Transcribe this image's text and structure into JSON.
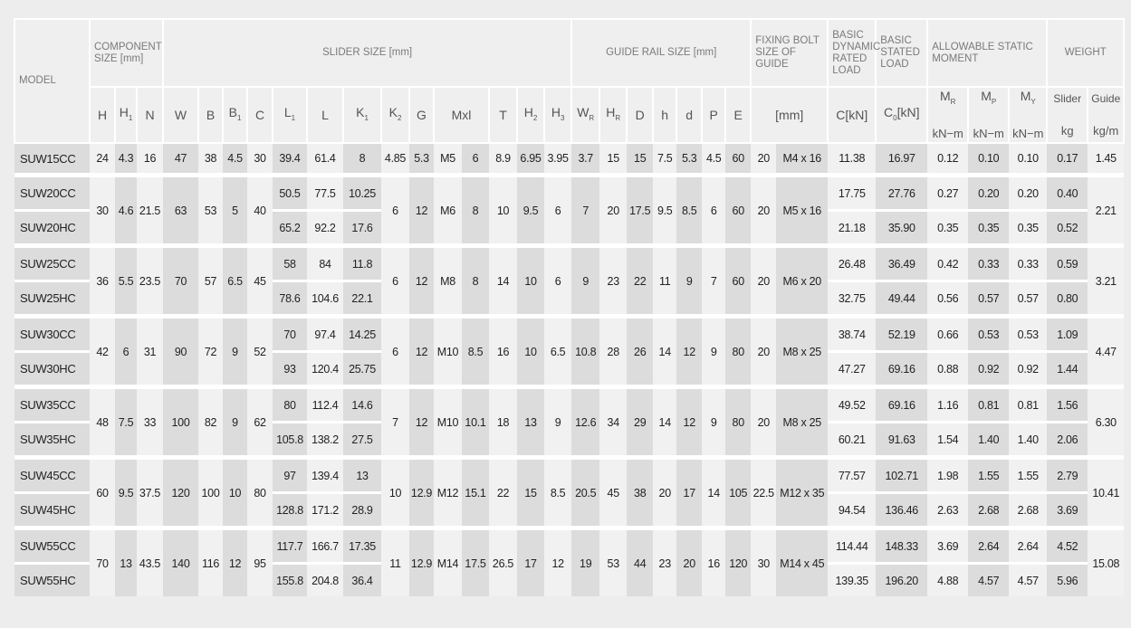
{
  "header": {
    "model": "MODEL",
    "component": "COMPONENT SIZE [mm]",
    "slider": "SLIDER SIZE [mm]",
    "guide_rail": "GUIDE RAIL SIZE [mm]",
    "fixing_bolt": "FIXING BOLT SIZE OF GUIDE",
    "dynamic_load": "BASIC DYNAMIC RATED LOAD",
    "static_load": "BASIC STATED LOAD",
    "moment": "ALLOWABLE STATIC MOMENT",
    "weight": "WEIGHT",
    "sub_labels": [
      {
        "base": "H",
        "sub": ""
      },
      {
        "base": "H",
        "sub": "1"
      },
      {
        "base": "N",
        "sub": ""
      },
      {
        "base": "W",
        "sub": ""
      },
      {
        "base": "B",
        "sub": ""
      },
      {
        "base": "B",
        "sub": "1"
      },
      {
        "base": "C",
        "sub": ""
      },
      {
        "base": "L",
        "sub": "1"
      },
      {
        "base": "L",
        "sub": ""
      },
      {
        "base": "K",
        "sub": "1"
      },
      {
        "base": "K",
        "sub": "2"
      },
      {
        "base": "G",
        "sub": ""
      },
      {
        "base": "Mxl",
        "sub": "",
        "span": 2
      },
      {
        "base": "T",
        "sub": ""
      },
      {
        "base": "H",
        "sub": "2"
      },
      {
        "base": "H",
        "sub": "3"
      },
      {
        "base": "W",
        "sub": "R"
      },
      {
        "base": "H",
        "sub": "R"
      },
      {
        "base": "D",
        "sub": ""
      },
      {
        "base": "h",
        "sub": ""
      },
      {
        "base": "d",
        "sub": ""
      },
      {
        "base": "P",
        "sub": ""
      },
      {
        "base": "E",
        "sub": ""
      },
      {
        "base": "[mm]",
        "sub": "",
        "span": 2
      },
      {
        "base": "C[kN]",
        "sub": ""
      },
      {
        "base": "C",
        "sub": "0",
        "tail": "[kN]"
      }
    ],
    "right_labels": [
      {
        "base": "M",
        "sub": "R",
        "unit": "kN−m"
      },
      {
        "base": "M",
        "sub": "P",
        "unit": "kN−m"
      },
      {
        "base": "M",
        "sub": "Y",
        "unit": "kN−m"
      },
      {
        "base": "Slider",
        "sub": "",
        "unit": "kg"
      },
      {
        "base": "Guide",
        "sub": "",
        "unit": "kg/m"
      }
    ]
  },
  "groups": [
    {
      "shared": {
        "H": "24",
        "H1": "4.3",
        "N": "16",
        "W": "47",
        "B": "38",
        "B1": "4.5",
        "C": "30",
        "K2": "4.85",
        "G": "5.3",
        "M": "M5",
        "l": "6",
        "T": "8.9",
        "H2": "6.95",
        "H3": "3.95",
        "WR": "3.7",
        "HR": "15",
        "D": "15",
        "h": "7.5",
        "d": "5.3",
        "P": "4.5",
        "E": "60",
        "b1": "20",
        "b2": "M4 x 16"
      },
      "guide": "1.45",
      "variants": [
        {
          "model": "SUW15CC",
          "L1": "39.4",
          "L": "61.4",
          "K1": "8",
          "Cd": "11.38",
          "C0": "16.97",
          "MR": "0.12",
          "MP": "0.10",
          "MY": "0.10",
          "slider": "0.17"
        }
      ]
    },
    {
      "shared": {
        "H": "30",
        "H1": "4.6",
        "N": "21.5",
        "W": "63",
        "B": "53",
        "B1": "5",
        "C": "40",
        "K2": "6",
        "G": "12",
        "M": "M6",
        "l": "8",
        "T": "10",
        "H2": "9.5",
        "H3": "6",
        "WR": "7",
        "HR": "20",
        "D": "17.5",
        "h": "9.5",
        "d": "8.5",
        "P": "6",
        "E": "60",
        "b1": "20",
        "b2": "M5 x 16"
      },
      "guide": "2.21",
      "variants": [
        {
          "model": "SUW20CC",
          "L1": "50.5",
          "L": "77.5",
          "K1": "10.25",
          "Cd": "17.75",
          "C0": "27.76",
          "MR": "0.27",
          "MP": "0.20",
          "MY": "0.20",
          "slider": "0.40"
        },
        {
          "model": "SUW20HC",
          "L1": "65.2",
          "L": "92.2",
          "K1": "17.6",
          "Cd": "21.18",
          "C0": "35.90",
          "MR": "0.35",
          "MP": "0.35",
          "MY": "0.35",
          "slider": "0.52"
        }
      ]
    },
    {
      "shared": {
        "H": "36",
        "H1": "5.5",
        "N": "23.5",
        "W": "70",
        "B": "57",
        "B1": "6.5",
        "C": "45",
        "K2": "6",
        "G": "12",
        "M": "M8",
        "l": "8",
        "T": "14",
        "H2": "10",
        "H3": "6",
        "WR": "9",
        "HR": "23",
        "D": "22",
        "h": "11",
        "d": "9",
        "P": "7",
        "E": "60",
        "b1": "20",
        "b2": "M6 x 20"
      },
      "guide": "3.21",
      "variants": [
        {
          "model": "SUW25CC",
          "L1": "58",
          "L": "84",
          "K1": "11.8",
          "Cd": "26.48",
          "C0": "36.49",
          "MR": "0.42",
          "MP": "0.33",
          "MY": "0.33",
          "slider": "0.59"
        },
        {
          "model": "SUW25HC",
          "L1": "78.6",
          "L": "104.6",
          "K1": "22.1",
          "Cd": "32.75",
          "C0": "49.44",
          "MR": "0.56",
          "MP": "0.57",
          "MY": "0.57",
          "slider": "0.80"
        }
      ]
    },
    {
      "shared": {
        "H": "42",
        "H1": "6",
        "N": "31",
        "W": "90",
        "B": "72",
        "B1": "9",
        "C": "52",
        "K2": "6",
        "G": "12",
        "M": "M10",
        "l": "8.5",
        "T": "16",
        "H2": "10",
        "H3": "6.5",
        "WR": "10.8",
        "HR": "28",
        "D": "26",
        "h": "14",
        "d": "12",
        "P": "9",
        "E": "80",
        "b1": "20",
        "b2": "M8 x 25"
      },
      "guide": "4.47",
      "variants": [
        {
          "model": "SUW30CC",
          "L1": "70",
          "L": "97.4",
          "K1": "14.25",
          "Cd": "38.74",
          "C0": "52.19",
          "MR": "0.66",
          "MP": "0.53",
          "MY": "0.53",
          "slider": "1.09"
        },
        {
          "model": "SUW30HC",
          "L1": "93",
          "L": "120.4",
          "K1": "25.75",
          "Cd": "47.27",
          "C0": "69.16",
          "MR": "0.88",
          "MP": "0.92",
          "MY": "0.92",
          "slider": "1.44"
        }
      ]
    },
    {
      "shared": {
        "H": "48",
        "H1": "7.5",
        "N": "33",
        "W": "100",
        "B": "82",
        "B1": "9",
        "C": "62",
        "K2": "7",
        "G": "12",
        "M": "M10",
        "l": "10.1",
        "T": "18",
        "H2": "13",
        "H3": "9",
        "WR": "12.6",
        "HR": "34",
        "D": "29",
        "h": "14",
        "d": "12",
        "P": "9",
        "E": "80",
        "b1": "20",
        "b2": "M8 x 25"
      },
      "guide": "6.30",
      "variants": [
        {
          "model": "SUW35CC",
          "L1": "80",
          "L": "112.4",
          "K1": "14.6",
          "Cd": "49.52",
          "C0": "69.16",
          "MR": "1.16",
          "MP": "0.81",
          "MY": "0.81",
          "slider": "1.56"
        },
        {
          "model": "SUW35HC",
          "L1": "105.8",
          "L": "138.2",
          "K1": "27.5",
          "Cd": "60.21",
          "C0": "91.63",
          "MR": "1.54",
          "MP": "1.40",
          "MY": "1.40",
          "slider": "2.06"
        }
      ]
    },
    {
      "shared": {
        "H": "60",
        "H1": "9.5",
        "N": "37.5",
        "W": "120",
        "B": "100",
        "B1": "10",
        "C": "80",
        "K2": "10",
        "G": "12.9",
        "M": "M12",
        "l": "15.1",
        "T": "22",
        "H2": "15",
        "H3": "8.5",
        "WR": "20.5",
        "HR": "45",
        "D": "38",
        "h": "20",
        "d": "17",
        "P": "14",
        "E": "105",
        "b1": "22.5",
        "b2": "M12 x 35"
      },
      "guide": "10.41",
      "variants": [
        {
          "model": "SUW45CC",
          "L1": "97",
          "L": "139.4",
          "K1": "13",
          "Cd": "77.57",
          "C0": "102.71",
          "MR": "1.98",
          "MP": "1.55",
          "MY": "1.55",
          "slider": "2.79"
        },
        {
          "model": "SUW45HC",
          "L1": "128.8",
          "L": "171.2",
          "K1": "28.9",
          "Cd": "94.54",
          "C0": "136.46",
          "MR": "2.63",
          "MP": "2.68",
          "MY": "2.68",
          "slider": "3.69"
        }
      ]
    },
    {
      "shared": {
        "H": "70",
        "H1": "13",
        "N": "43.5",
        "W": "140",
        "B": "116",
        "B1": "12",
        "C": "95",
        "K2": "11",
        "G": "12.9",
        "M": "M14",
        "l": "17.5",
        "T": "26.5",
        "H2": "17",
        "H3": "12",
        "WR": "19",
        "HR": "53",
        "D": "44",
        "h": "23",
        "d": "20",
        "P": "16",
        "E": "120",
        "b1": "30",
        "b2": "M14 x 45"
      },
      "guide": "15.08",
      "variants": [
        {
          "model": "SUW55CC",
          "L1": "117.7",
          "L": "166.7",
          "K1": "17.35",
          "Cd": "114.44",
          "C0": "148.33",
          "MR": "3.69",
          "MP": "2.64",
          "MY": "2.64",
          "slider": "4.52"
        },
        {
          "model": "SUW55HC",
          "L1": "155.8",
          "L": "204.8",
          "K1": "36.4",
          "Cd": "139.35",
          "C0": "196.20",
          "MR": "4.88",
          "MP": "4.57",
          "MY": "4.57",
          "slider": "5.96"
        }
      ]
    }
  ]
}
